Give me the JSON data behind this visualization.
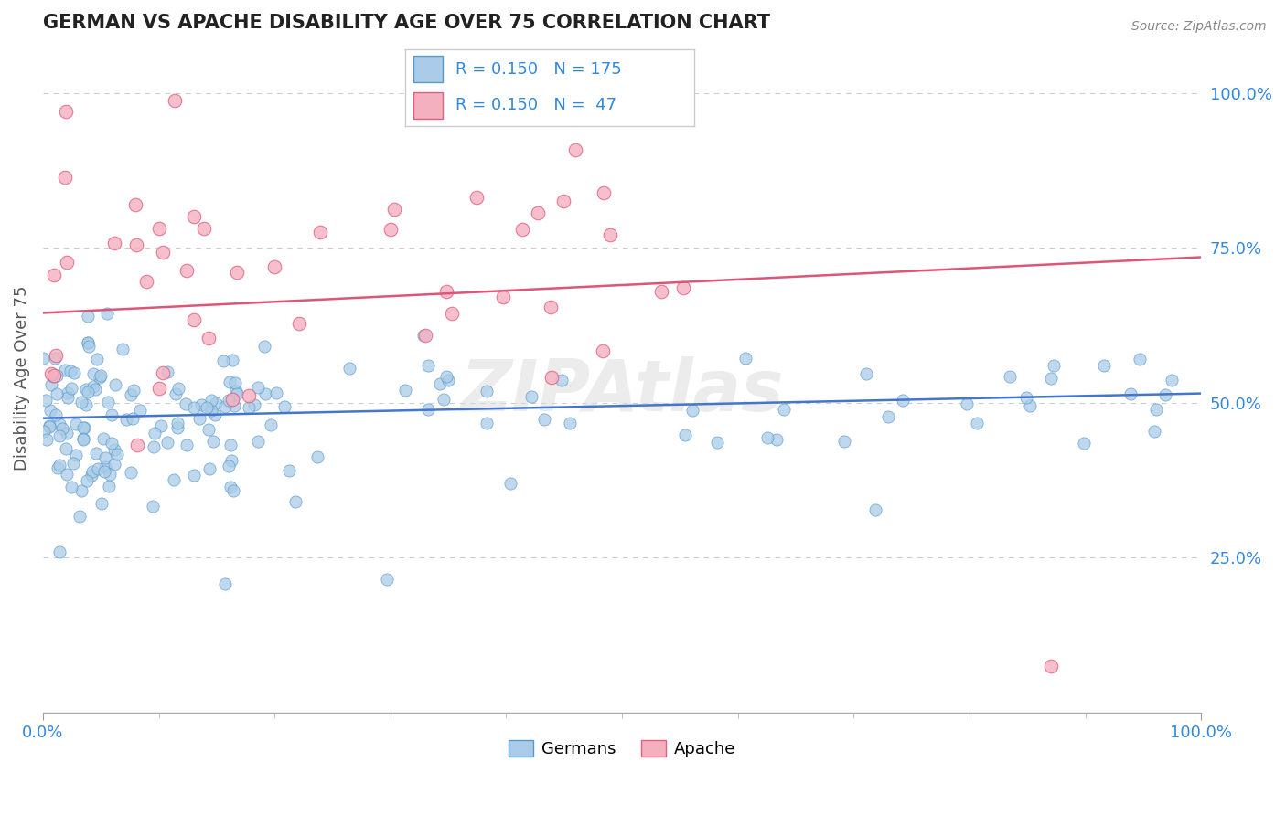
{
  "title": "GERMAN VS APACHE DISABILITY AGE OVER 75 CORRELATION CHART",
  "source_text": "Source: ZipAtlas.com",
  "xlabel": "",
  "ylabel": "Disability Age Over 75",
  "xlim": [
    0,
    1
  ],
  "ylim": [
    0,
    1.08
  ],
  "x_ticks": [
    0,
    1
  ],
  "x_tick_labels": [
    "0.0%",
    "100.0%"
  ],
  "y_ticks": [
    0.25,
    0.5,
    0.75,
    1.0
  ],
  "y_tick_labels": [
    "25.0%",
    "50.0%",
    "75.0%",
    "100.0%"
  ],
  "german_color": "#aacce8",
  "apache_color": "#f5b0c0",
  "german_edge_color": "#5599cc",
  "apache_edge_color": "#e06080",
  "german_line_color": "#4477cc",
  "apache_line_color": "#dd5577",
  "german_R": 0.15,
  "german_N": 175,
  "apache_R": 0.15,
  "apache_N": 47,
  "legend_label_german": "Germans",
  "legend_label_apache": "Apache",
  "watermark": "ZIPAtlas",
  "title_color": "#222222",
  "axis_label_color": "#555555",
  "tick_color": "#3388dd",
  "grid_color": "#cccccc",
  "background_color": "#ffffff",
  "german_trend_start": 0.475,
  "german_trend_end": 0.515,
  "apache_trend_start": 0.645,
  "apache_trend_end": 0.735
}
